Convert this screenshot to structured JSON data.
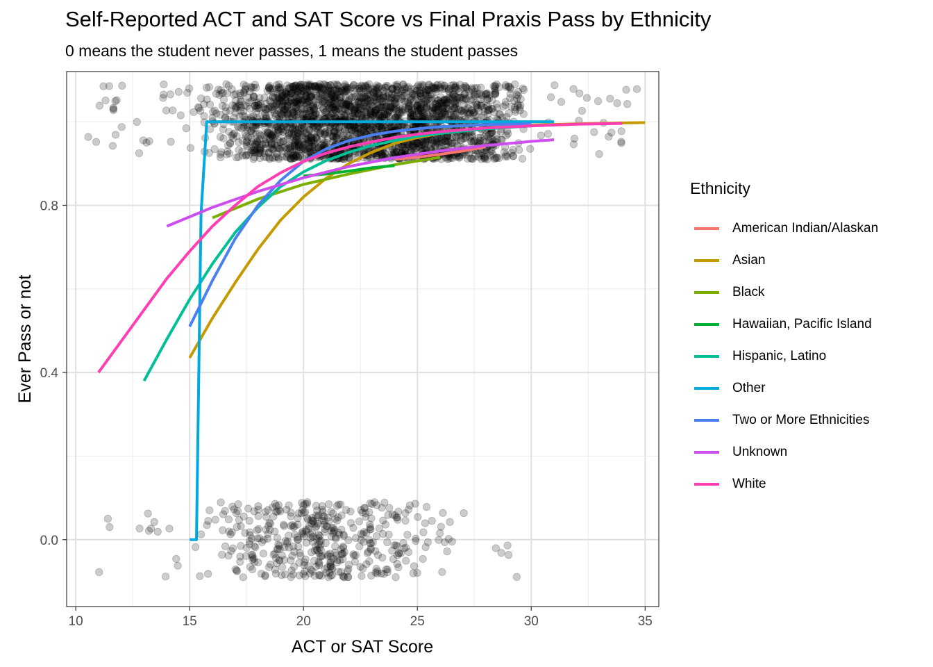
{
  "chart_data": {
    "type": "scatter",
    "title": "Self-Reported ACT and SAT Score vs Final Praxis Pass by Ethnicity",
    "subtitle": "0 means the student never passes, 1 means the student passes",
    "xlabel": "ACT or SAT Score",
    "ylabel": "Ever Pass or not",
    "xlim": [
      9.6,
      35.6
    ],
    "ylim": [
      -0.16,
      1.12
    ],
    "x_ticks": [
      "10",
      "15",
      "20",
      "25",
      "30",
      "35"
    ],
    "y_ticks": [
      "0.0",
      "0.4",
      "0.8"
    ],
    "grid": true,
    "legend_title": "Ethnicity",
    "legend_position": "right",
    "points_jitter": {
      "pass_band": {
        "y_center": 1.0,
        "y_spread": 0.09,
        "x_dense_range": [
          15.5,
          30
        ],
        "x_sparse_range": [
          10.5,
          35
        ],
        "approx_count": 2500
      },
      "fail_band": {
        "y_center": 0.0,
        "y_spread": 0.09,
        "x_range": [
          10.5,
          29.5
        ],
        "approx_count": 450
      },
      "color": "#000000",
      "alpha": 0.2
    },
    "series": [
      {
        "name": "American Indian/Alaskan",
        "color": "#F8766D",
        "x": [
          24,
          25,
          26,
          27,
          28
        ],
        "y": [
          0.91,
          0.915,
          0.922,
          0.93,
          0.94
        ]
      },
      {
        "name": "Asian",
        "color": "#C49A00",
        "x": [
          15,
          16,
          17,
          18,
          19,
          20,
          21,
          22,
          23,
          24,
          25,
          26,
          27,
          28,
          29,
          30,
          32,
          35
        ],
        "y": [
          0.435,
          0.53,
          0.615,
          0.695,
          0.765,
          0.82,
          0.865,
          0.9,
          0.927,
          0.948,
          0.962,
          0.972,
          0.979,
          0.985,
          0.989,
          0.992,
          0.995,
          0.998
        ]
      },
      {
        "name": "Black",
        "color": "#7CAE00",
        "x": [
          16,
          18,
          20,
          22,
          24,
          26
        ],
        "y": [
          0.77,
          0.815,
          0.85,
          0.875,
          0.897,
          0.915
        ]
      },
      {
        "name": "Hawaiian, Pacific Island",
        "color": "#00B030",
        "x": [
          20,
          21,
          22,
          23,
          24
        ],
        "y": [
          0.87,
          0.875,
          0.882,
          0.89,
          0.895
        ]
      },
      {
        "name": "Hispanic, Latino",
        "color": "#00BF96",
        "x": [
          13,
          14,
          15,
          16,
          17,
          18,
          19,
          20,
          21,
          22,
          23,
          24,
          25,
          26,
          28,
          30
        ],
        "y": [
          0.38,
          0.48,
          0.575,
          0.66,
          0.735,
          0.795,
          0.845,
          0.88,
          0.907,
          0.927,
          0.943,
          0.955,
          0.965,
          0.972,
          0.983,
          0.99
        ]
      },
      {
        "name": "Other",
        "color": "#00A9E0",
        "x": [
          15.0,
          15.3,
          15.5,
          15.75,
          16.0,
          31.0
        ],
        "y": [
          0.0,
          0.0,
          0.78,
          1.0,
          1.0,
          1.0
        ]
      },
      {
        "name": "Two or More Ethnicities",
        "color": "#4A7FF0",
        "x": [
          15,
          16,
          17,
          18,
          19,
          20,
          21,
          22,
          23,
          24,
          25,
          26,
          28,
          30
        ],
        "y": [
          0.51,
          0.62,
          0.72,
          0.8,
          0.86,
          0.905,
          0.935,
          0.955,
          0.968,
          0.977,
          0.983,
          0.988,
          0.993,
          0.995
        ]
      },
      {
        "name": "Unknown",
        "color": "#CC4EEF",
        "x": [
          14,
          16,
          18,
          20,
          22,
          24,
          26,
          28,
          30,
          31
        ],
        "y": [
          0.75,
          0.795,
          0.833,
          0.866,
          0.893,
          0.914,
          0.93,
          0.943,
          0.953,
          0.957
        ]
      },
      {
        "name": "White",
        "color": "#FF3EB4",
        "x": [
          11,
          12,
          13,
          14,
          15,
          16,
          17,
          18,
          19,
          20,
          21,
          22,
          23,
          24,
          25,
          26,
          28,
          30,
          32,
          34
        ],
        "y": [
          0.4,
          0.475,
          0.55,
          0.625,
          0.69,
          0.75,
          0.8,
          0.845,
          0.878,
          0.905,
          0.925,
          0.94,
          0.952,
          0.962,
          0.97,
          0.976,
          0.985,
          0.99,
          0.994,
          0.996
        ]
      }
    ]
  }
}
